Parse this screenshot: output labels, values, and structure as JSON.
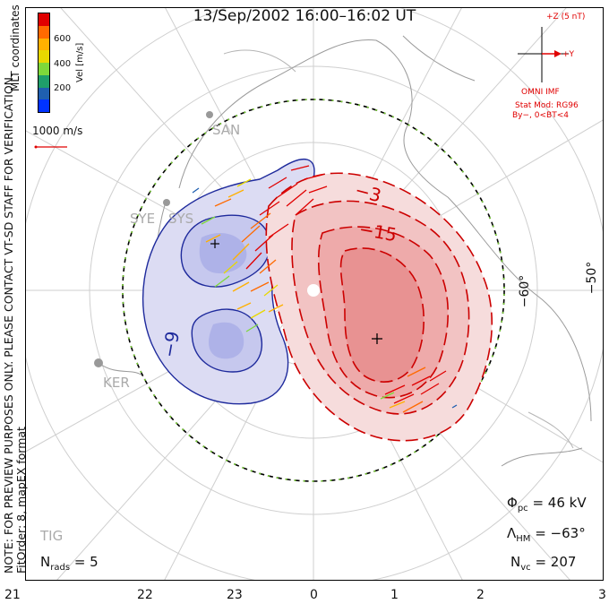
{
  "title": "13/Sep/2002 16:00–16:02 UT",
  "note_line1": "NOTE: FOR PREVIEW PURPOSES ONLY. PLEASE CONTACT VT-SD STAFF FOR VERIFICATION.",
  "note_line2": "FitOrder: 8, mapEX format",
  "coords_label": "MLT coordinates",
  "colorbar": {
    "label": "Vel [m/s]",
    "ticks": [
      "600",
      "400",
      "200"
    ],
    "colors": [
      "#e00000",
      "#ff6a00",
      "#ffb000",
      "#e8d800",
      "#7ed83a",
      "#1f9e6a",
      "#1f5fb0",
      "#0033ff"
    ]
  },
  "vector_scale": "1000 m/s",
  "imf": {
    "z_label": "+Z (5 nT)",
    "y_label": "+Y",
    "source": "OMNI IMF",
    "model": "Stat Mod: RG96",
    "condition": "By−, 0<BT<4"
  },
  "lat_labels": [
    "−60°",
    "−50°"
  ],
  "contour_labels": [
    "−3",
    "−15",
    "−9"
  ],
  "stations": [
    "SAN",
    "SYE",
    "SYS",
    "KER",
    "TIG"
  ],
  "mlt_ticks": [
    "21",
    "22",
    "23",
    "0",
    "1",
    "2",
    "3"
  ],
  "stats": {
    "phi_pc_sym": "Φ",
    "phi_pc_sub": "pc",
    "phi_pc_val": "= 46 kV",
    "lambda_sym": "Λ",
    "lambda_sub": "HM",
    "lambda_val": "= −63°",
    "nvc_sym": "N",
    "nvc_sub": "vc",
    "nvc_val": "= 207",
    "nrads_sym": "N",
    "nrads_sub": "rads",
    "nrads_val": "= 5"
  }
}
